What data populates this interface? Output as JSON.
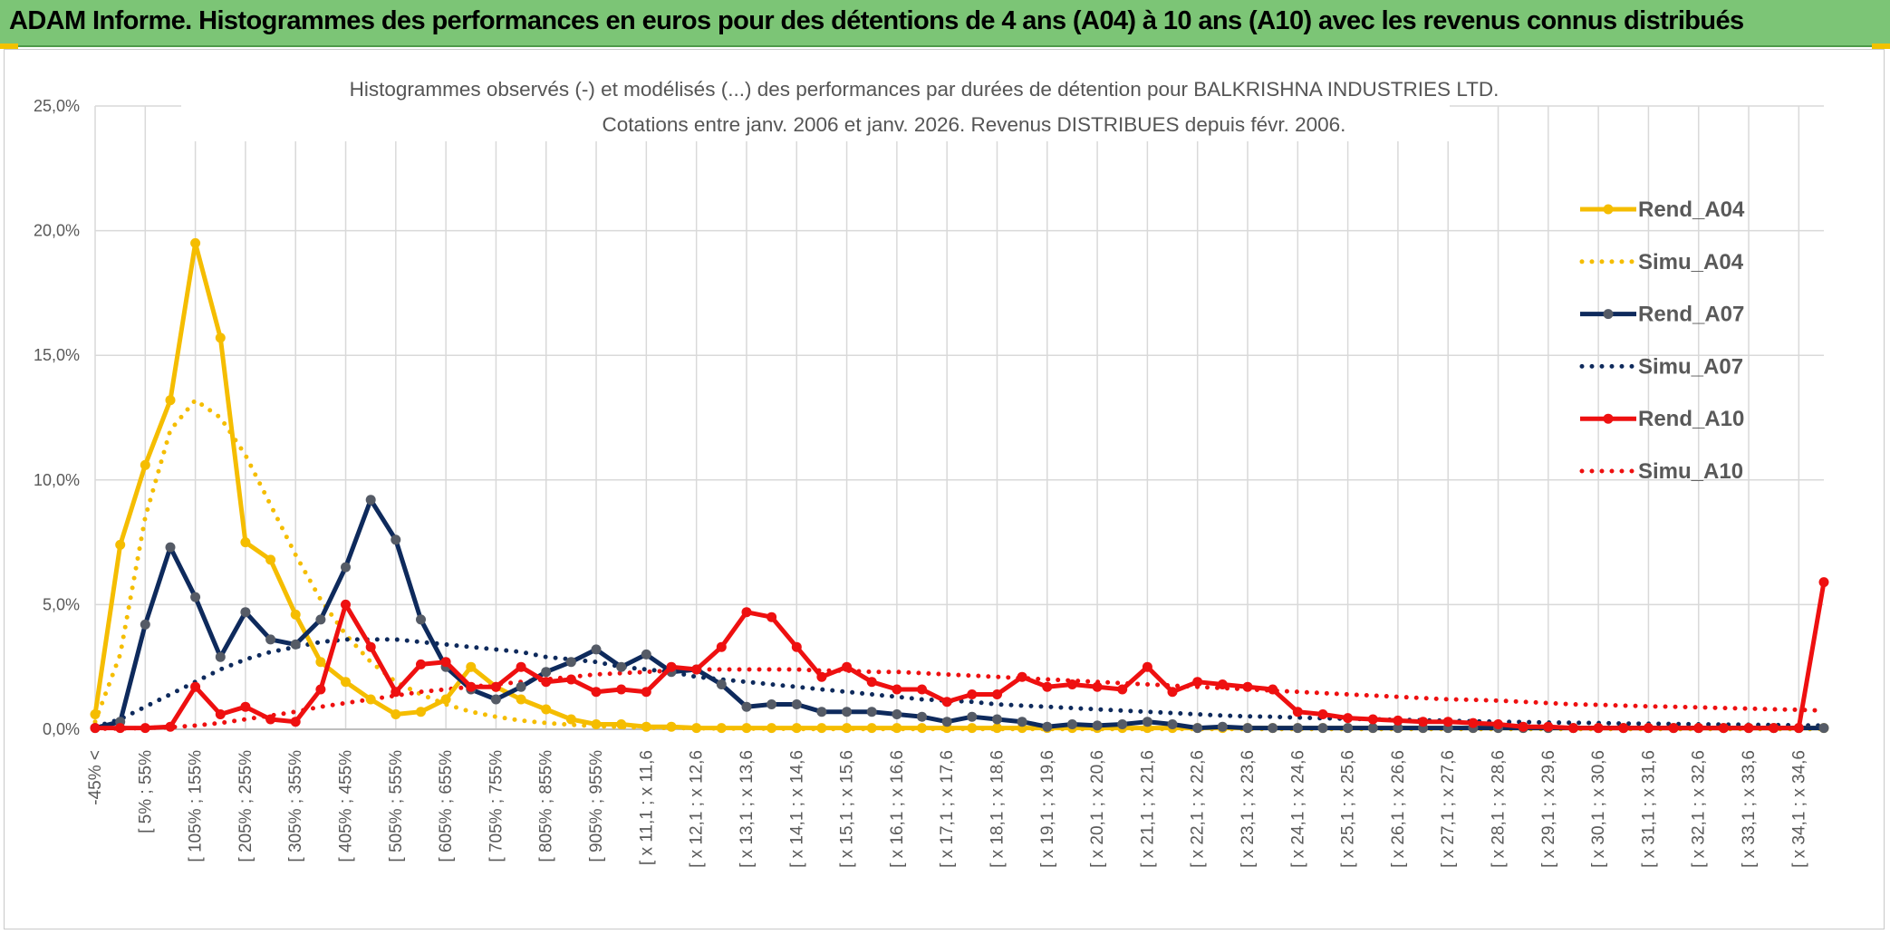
{
  "banner": {
    "title": "ADAM Informe. Histogrammes des performances en euros pour des détentions de 4 ans (A04) à 10 ans (A10) avec les revenus connus distribués"
  },
  "colors": {
    "banner_bg": "#7cc576",
    "A04": "#f5bd00",
    "A07": "#0e2a5c",
    "A10": "#ee1010",
    "marker_A07": "#555b66"
  },
  "chart_data": {
    "type": "line",
    "title_line1": "Histogrammes observés (-) et modélisés (...) des performances par durées de détention pour BALKRISHNA INDUSTRIES LTD.",
    "title_line2": "Cotations entre janv. 2006 et janv. 2026. Revenus DISTRIBUES depuis févr. 2006.",
    "ylim": [
      0,
      25
    ],
    "yticks": [
      "0,0%",
      "5,0%",
      "10,0%",
      "15,0%",
      "20,0%",
      "25,0%"
    ],
    "legend_position": "right",
    "grid": true,
    "categories": [
      "-45% <",
      "",
      "[ 5% ; 55%",
      "",
      "[ 105% ; 155%",
      "",
      "[ 205% ; 255%",
      "",
      "[ 305% ; 355%",
      "",
      "[ 405% ; 455%",
      "",
      "[ 505% ; 555%",
      "",
      "[ 605% ; 655%",
      "",
      "[ 705% ; 755%",
      "",
      "[ 805% ; 855%",
      "",
      "[ 905% ; 955%",
      "",
      "[ x 11,1 ; x 11,6",
      "",
      "[ x 12,1 ; x 12,6",
      "",
      "[ x 13,1 ; x 13,6",
      "",
      "[ x 14,1 ; x 14,6",
      "",
      "[ x 15,1 ; x 15,6",
      "",
      "[ x 16,1 ; x 16,6",
      "",
      "[ x 17,1 ; x 17,6",
      "",
      "[ x 18,1 ; x 18,6",
      "",
      "[ x 19,1 ; x 19,6",
      "",
      "[ x 20,1 ; x 20,6",
      "",
      "[ x 21,1 ; x 21,6",
      "",
      "[ x 22,1 ; x 22,6",
      "",
      "[ x 23,1 ; x 23,6",
      "",
      "[ x 24,1 ; x 24,6",
      "",
      "[ x 25,1 ; x 25,6",
      "",
      "[ x 26,1 ; x 26,6",
      "",
      "[ x 27,1 ; x 27,6",
      "",
      "[ x 28,1 ; x 28,6",
      "",
      "[ x 29,1 ; x 29,6",
      "",
      "[ x 30,1 ; x 30,6",
      "",
      "[ x 31,1 ; x 31,6",
      "",
      "[ x 32,1 ; x 32,6",
      "",
      "[ x 33,1 ; x 33,6",
      "",
      "[ x 34,1 ; x 34,6",
      ""
    ],
    "series": [
      {
        "name": "Rend_A04",
        "style": "solid",
        "color": "#f5bd00",
        "values": [
          0.6,
          7.4,
          10.6,
          13.2,
          19.5,
          15.7,
          7.5,
          6.8,
          4.6,
          2.7,
          1.9,
          1.2,
          0.6,
          0.7,
          1.2,
          2.5,
          1.7,
          1.2,
          0.8,
          0.4,
          0.2,
          0.2,
          0.1,
          0.1,
          0.05,
          0.05,
          0.05,
          0.05,
          0.05,
          0.05,
          0.05,
          0.05,
          0.05,
          0.05,
          0.05,
          0.05,
          0.05,
          0.05,
          0.05,
          0.05,
          0.05,
          0.05,
          0.05,
          0.05,
          0.05,
          0.05,
          0.05,
          0.05,
          0.05,
          0.05,
          0.05,
          0.05,
          0.05,
          0.05,
          0.05,
          0.05,
          0.05,
          0.05,
          0.05,
          0.05,
          0.05,
          0.05,
          0.05,
          0.05,
          0.05,
          0.05,
          0.05,
          0.05,
          0.05,
          0.05
        ]
      },
      {
        "name": "Simu_A04",
        "style": "dotted",
        "color": "#f5bd00",
        "values": [
          0.3,
          3.0,
          8.5,
          12.0,
          13.2,
          12.5,
          11.0,
          9.0,
          7.0,
          5.2,
          3.8,
          2.7,
          1.9,
          1.4,
          1.0,
          0.7,
          0.5,
          0.35,
          0.25,
          0.18,
          0.12,
          0.09,
          0.07,
          0.05,
          0.04,
          0.03,
          0.02,
          0.02,
          0.01,
          0.01,
          0.01,
          0.01,
          0.01,
          0.01,
          0.01,
          0.01,
          0.01,
          0.01,
          0.01,
          0.01,
          0.01,
          0.01,
          0.01,
          0.01,
          0.01,
          0.01,
          0.01,
          0.01,
          0.01,
          0.01,
          0.01,
          0.01,
          0.01,
          0.01,
          0.01,
          0.01,
          0.01,
          0.01,
          0.01,
          0.01,
          0.01,
          0.01,
          0.01,
          0.01,
          0.01,
          0.01,
          0.01,
          0.01,
          0.01,
          0.01
        ]
      },
      {
        "name": "Rend_A07",
        "style": "solid",
        "color": "#0e2a5c",
        "values": [
          0.05,
          0.3,
          4.2,
          7.3,
          5.3,
          2.9,
          4.7,
          3.6,
          3.4,
          4.4,
          6.5,
          9.2,
          7.6,
          4.4,
          2.5,
          1.6,
          1.2,
          1.7,
          2.3,
          2.7,
          3.2,
          2.5,
          3.0,
          2.3,
          2.4,
          1.8,
          0.9,
          1.0,
          1.0,
          0.7,
          0.7,
          0.7,
          0.6,
          0.5,
          0.3,
          0.5,
          0.4,
          0.3,
          0.1,
          0.2,
          0.15,
          0.2,
          0.3,
          0.2,
          0.05,
          0.1,
          0.05,
          0.05,
          0.05,
          0.05,
          0.05,
          0.05,
          0.05,
          0.05,
          0.05,
          0.05,
          0.05,
          0.05,
          0.05,
          0.05,
          0.05,
          0.05,
          0.05,
          0.05,
          0.05,
          0.05,
          0.05,
          0.05,
          0.05,
          0.05
        ]
      },
      {
        "name": "Simu_A07",
        "style": "dotted",
        "color": "#0e2a5c",
        "values": [
          0.1,
          0.4,
          0.9,
          1.4,
          1.9,
          2.4,
          2.8,
          3.1,
          3.3,
          3.5,
          3.6,
          3.6,
          3.6,
          3.5,
          3.4,
          3.3,
          3.2,
          3.1,
          2.9,
          2.8,
          2.7,
          2.5,
          2.4,
          2.3,
          2.1,
          2.0,
          1.9,
          1.8,
          1.7,
          1.6,
          1.5,
          1.4,
          1.3,
          1.2,
          1.15,
          1.1,
          1.0,
          0.95,
          0.9,
          0.85,
          0.8,
          0.75,
          0.7,
          0.65,
          0.6,
          0.55,
          0.52,
          0.5,
          0.47,
          0.44,
          0.42,
          0.4,
          0.38,
          0.36,
          0.34,
          0.32,
          0.3,
          0.29,
          0.27,
          0.26,
          0.25,
          0.23,
          0.22,
          0.21,
          0.2,
          0.19,
          0.18,
          0.17,
          0.16,
          0.15
        ]
      },
      {
        "name": "Rend_A10",
        "style": "solid",
        "color": "#ee1010",
        "values": [
          0.05,
          0.05,
          0.05,
          0.1,
          1.7,
          0.6,
          0.9,
          0.4,
          0.3,
          1.6,
          5.0,
          3.3,
          1.5,
          2.6,
          2.7,
          1.7,
          1.7,
          2.5,
          1.9,
          2.0,
          1.5,
          1.6,
          1.5,
          2.5,
          2.4,
          3.3,
          4.7,
          4.5,
          3.3,
          2.1,
          2.5,
          1.9,
          1.6,
          1.6,
          1.1,
          1.4,
          1.4,
          2.1,
          1.7,
          1.8,
          1.7,
          1.6,
          2.5,
          1.5,
          1.9,
          1.8,
          1.7,
          1.6,
          0.7,
          0.6,
          0.45,
          0.4,
          0.35,
          0.3,
          0.3,
          0.25,
          0.2,
          0.1,
          0.1,
          0.05,
          0.05,
          0.05,
          0.05,
          0.05,
          0.05,
          0.05,
          0.05,
          0.05,
          0.05,
          5.9
        ]
      },
      {
        "name": "Simu_A10",
        "style": "dotted",
        "color": "#ee1010",
        "values": [
          0.02,
          0.03,
          0.05,
          0.08,
          0.15,
          0.25,
          0.4,
          0.55,
          0.7,
          0.9,
          1.05,
          1.2,
          1.35,
          1.5,
          1.6,
          1.7,
          1.8,
          1.9,
          2.0,
          2.1,
          2.2,
          2.25,
          2.3,
          2.35,
          2.4,
          2.4,
          2.4,
          2.4,
          2.4,
          2.35,
          2.35,
          2.3,
          2.3,
          2.25,
          2.2,
          2.15,
          2.1,
          2.05,
          2.0,
          1.95,
          1.9,
          1.85,
          1.8,
          1.75,
          1.7,
          1.65,
          1.6,
          1.55,
          1.5,
          1.45,
          1.4,
          1.35,
          1.3,
          1.25,
          1.2,
          1.18,
          1.15,
          1.1,
          1.05,
          1.0,
          0.98,
          0.95,
          0.92,
          0.9,
          0.88,
          0.85,
          0.83,
          0.8,
          0.78,
          0.75
        ]
      }
    ]
  }
}
